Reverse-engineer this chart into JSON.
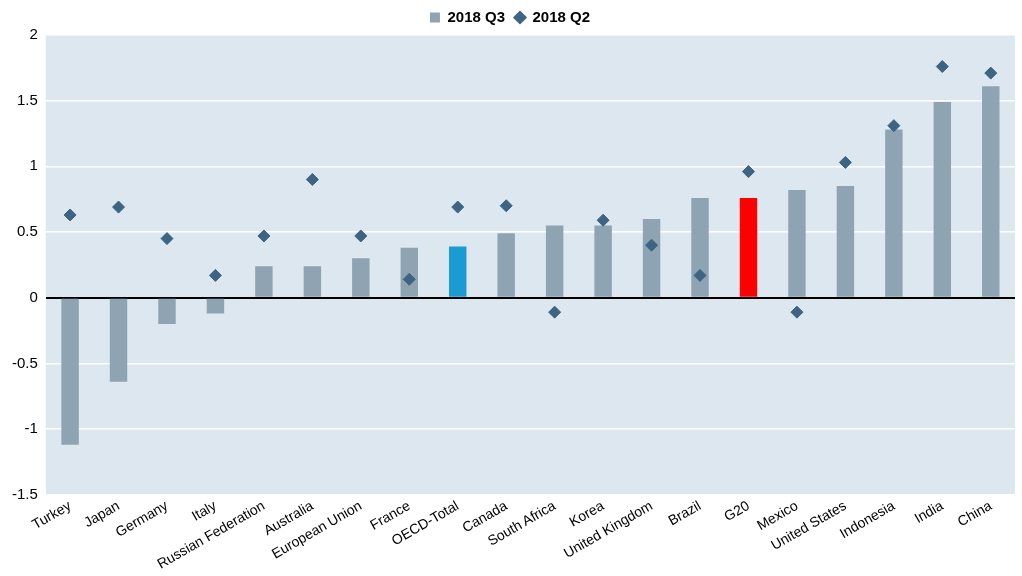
{
  "chart_data": {
    "type": "bar",
    "categories": [
      "Turkey",
      "Japan",
      "Germany",
      "Italy",
      "Russian Federation",
      "Australia",
      "European Union",
      "France",
      "OECD-Total",
      "Canada",
      "South Africa",
      "Korea",
      "United Kingdom",
      "Brazil",
      "G20",
      "Mexico",
      "United States",
      "Indonesia",
      "India",
      "China"
    ],
    "series": [
      {
        "name": "2018 Q3",
        "color": "#8fa4b2",
        "colors": [
          "#8fa4b2",
          "#8fa4b2",
          "#8fa4b2",
          "#8fa4b2",
          "#8fa4b2",
          "#8fa4b2",
          "#8fa4b2",
          "#8fa4b2",
          "#1a9bd1",
          "#8fa4b2",
          "#8fa4b2",
          "#8fa4b2",
          "#8fa4b2",
          "#8fa4b2",
          "#ff0000",
          "#8fa4b2",
          "#8fa4b2",
          "#8fa4b2",
          "#8fa4b2",
          "#8fa4b2"
        ],
        "values": [
          -1.12,
          -0.64,
          -0.2,
          -0.12,
          0.24,
          0.24,
          0.3,
          0.38,
          0.39,
          0.49,
          0.55,
          0.55,
          0.6,
          0.76,
          0.76,
          0.82,
          0.85,
          1.28,
          1.49,
          1.61
        ]
      },
      {
        "name": "2018 Q2",
        "type": "scatter",
        "color": "#3d6483",
        "values": [
          0.63,
          0.69,
          0.45,
          0.17,
          0.47,
          0.9,
          0.47,
          0.14,
          0.69,
          0.7,
          -0.11,
          0.59,
          0.4,
          0.17,
          0.96,
          -0.11,
          1.03,
          1.31,
          1.76,
          1.71
        ]
      }
    ],
    "ylim": [
      -1.5,
      2
    ],
    "yticks": [
      -1.5,
      -1,
      -0.5,
      0,
      0.5,
      1,
      1.5,
      2
    ],
    "grid": "y",
    "legend": "top",
    "marker": "diamond"
  }
}
